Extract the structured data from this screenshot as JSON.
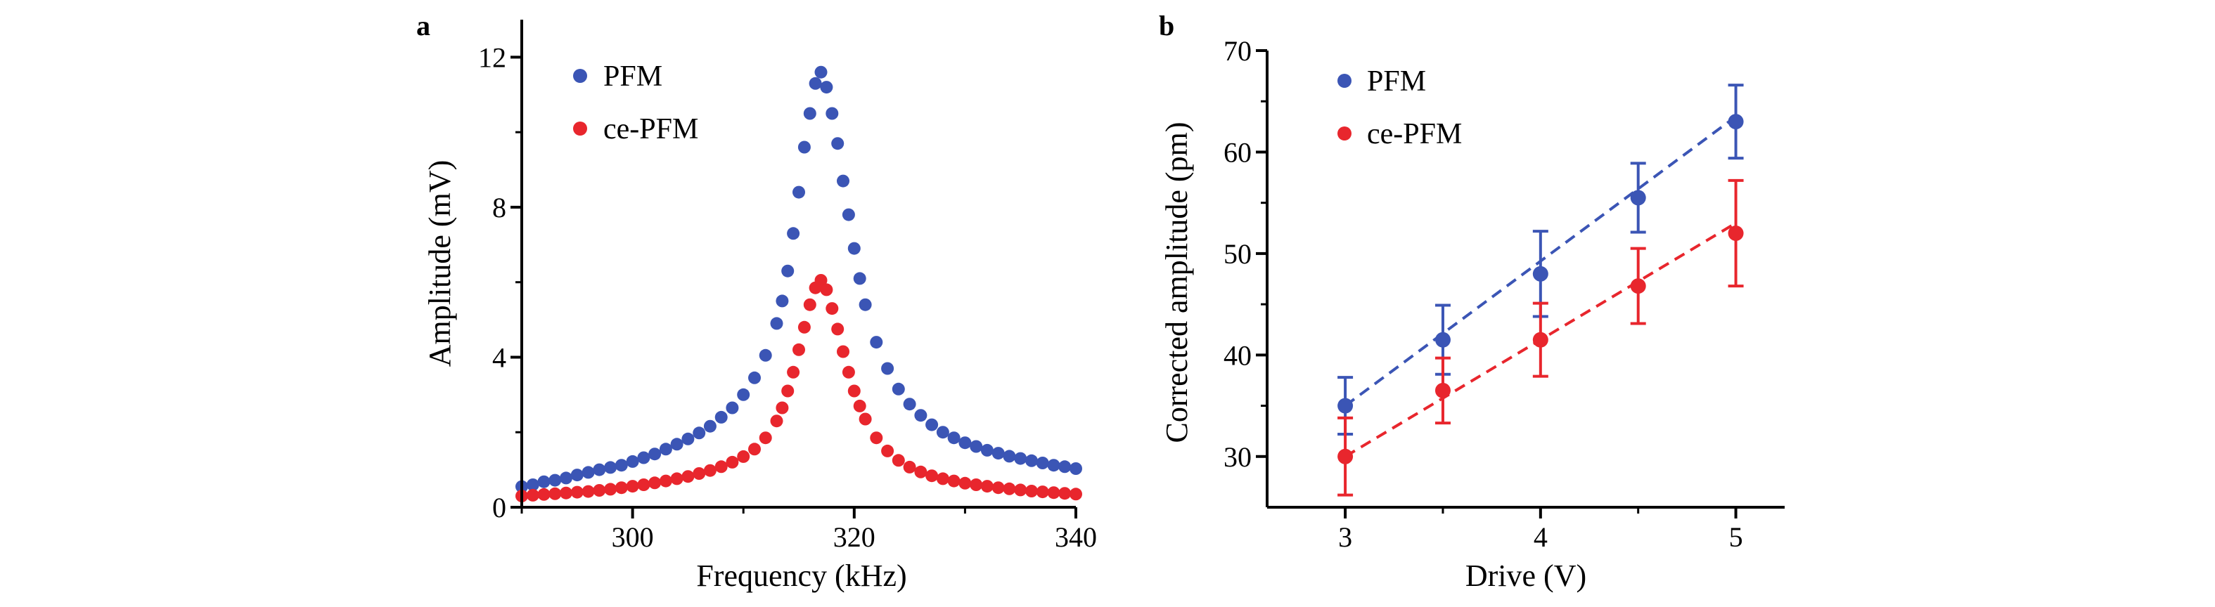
{
  "colors": {
    "pfm": "#3B55B5",
    "ce_pfm": "#E8262D",
    "axis": "#000000"
  },
  "chart_data": [
    {
      "panel": "a",
      "type": "scatter",
      "xlabel": "Frequency (kHz)",
      "ylabel": "Amplitude (mV)",
      "xlim": [
        290,
        340
      ],
      "ylim": [
        0,
        13
      ],
      "xticks": [
        300,
        320,
        340
      ],
      "yticks": [
        0,
        4,
        8,
        12
      ],
      "legend_position": "top-left",
      "series": [
        {
          "name": "PFM",
          "color_key": "pfm",
          "points": [
            [
              290.0,
              0.55
            ],
            [
              291.0,
              0.6
            ],
            [
              292.0,
              0.68
            ],
            [
              293.0,
              0.72
            ],
            [
              294.0,
              0.78
            ],
            [
              295.0,
              0.86
            ],
            [
              296.0,
              0.93
            ],
            [
              297.0,
              1.0
            ],
            [
              298.0,
              1.06
            ],
            [
              299.0,
              1.12
            ],
            [
              300.0,
              1.22
            ],
            [
              301.0,
              1.32
            ],
            [
              302.0,
              1.42
            ],
            [
              303.0,
              1.55
            ],
            [
              304.0,
              1.68
            ],
            [
              305.0,
              1.82
            ],
            [
              306.0,
              1.98
            ],
            [
              307.0,
              2.16
            ],
            [
              308.0,
              2.4
            ],
            [
              309.0,
              2.65
            ],
            [
              310.0,
              3.0
            ],
            [
              311.0,
              3.45
            ],
            [
              312.0,
              4.05
            ],
            [
              313.0,
              4.9
            ],
            [
              313.5,
              5.5
            ],
            [
              314.0,
              6.3
            ],
            [
              314.5,
              7.3
            ],
            [
              315.0,
              8.4
            ],
            [
              315.5,
              9.6
            ],
            [
              316.0,
              10.5
            ],
            [
              316.5,
              11.3
            ],
            [
              317.0,
              11.6
            ],
            [
              317.5,
              11.2
            ],
            [
              318.0,
              10.5
            ],
            [
              318.5,
              9.7
            ],
            [
              319.0,
              8.7
            ],
            [
              319.5,
              7.8
            ],
            [
              320.0,
              6.9
            ],
            [
              320.5,
              6.1
            ],
            [
              321.0,
              5.4
            ],
            [
              322.0,
              4.4
            ],
            [
              323.0,
              3.7
            ],
            [
              324.0,
              3.15
            ],
            [
              325.0,
              2.75
            ],
            [
              326.0,
              2.45
            ],
            [
              327.0,
              2.2
            ],
            [
              328.0,
              2.0
            ],
            [
              329.0,
              1.85
            ],
            [
              330.0,
              1.72
            ],
            [
              331.0,
              1.62
            ],
            [
              332.0,
              1.52
            ],
            [
              333.0,
              1.44
            ],
            [
              334.0,
              1.36
            ],
            [
              335.0,
              1.3
            ],
            [
              336.0,
              1.24
            ],
            [
              337.0,
              1.18
            ],
            [
              338.0,
              1.12
            ],
            [
              339.0,
              1.08
            ],
            [
              340.0,
              1.03
            ]
          ]
        },
        {
          "name": "ce-PFM",
          "color_key": "ce_pfm",
          "points": [
            [
              290.0,
              0.3
            ],
            [
              291.0,
              0.32
            ],
            [
              292.0,
              0.34
            ],
            [
              293.0,
              0.36
            ],
            [
              294.0,
              0.38
            ],
            [
              295.0,
              0.4
            ],
            [
              296.0,
              0.42
            ],
            [
              297.0,
              0.45
            ],
            [
              298.0,
              0.48
            ],
            [
              299.0,
              0.52
            ],
            [
              300.0,
              0.56
            ],
            [
              301.0,
              0.6
            ],
            [
              302.0,
              0.65
            ],
            [
              303.0,
              0.7
            ],
            [
              304.0,
              0.76
            ],
            [
              305.0,
              0.82
            ],
            [
              306.0,
              0.9
            ],
            [
              307.0,
              0.98
            ],
            [
              308.0,
              1.08
            ],
            [
              309.0,
              1.2
            ],
            [
              310.0,
              1.35
            ],
            [
              311.0,
              1.55
            ],
            [
              312.0,
              1.85
            ],
            [
              313.0,
              2.3
            ],
            [
              313.5,
              2.65
            ],
            [
              314.0,
              3.1
            ],
            [
              314.5,
              3.6
            ],
            [
              315.0,
              4.2
            ],
            [
              315.5,
              4.8
            ],
            [
              316.0,
              5.4
            ],
            [
              316.5,
              5.85
            ],
            [
              317.0,
              6.05
            ],
            [
              317.5,
              5.8
            ],
            [
              318.0,
              5.3
            ],
            [
              318.5,
              4.75
            ],
            [
              319.0,
              4.15
            ],
            [
              319.5,
              3.6
            ],
            [
              320.0,
              3.1
            ],
            [
              320.5,
              2.7
            ],
            [
              321.0,
              2.35
            ],
            [
              322.0,
              1.85
            ],
            [
              323.0,
              1.5
            ],
            [
              324.0,
              1.25
            ],
            [
              325.0,
              1.07
            ],
            [
              326.0,
              0.94
            ],
            [
              327.0,
              0.84
            ],
            [
              328.0,
              0.76
            ],
            [
              329.0,
              0.7
            ],
            [
              330.0,
              0.64
            ],
            [
              331.0,
              0.6
            ],
            [
              332.0,
              0.56
            ],
            [
              333.0,
              0.52
            ],
            [
              334.0,
              0.49
            ],
            [
              335.0,
              0.46
            ],
            [
              336.0,
              0.43
            ],
            [
              337.0,
              0.41
            ],
            [
              338.0,
              0.39
            ],
            [
              339.0,
              0.37
            ],
            [
              340.0,
              0.35
            ]
          ]
        }
      ]
    },
    {
      "panel": "b",
      "type": "scatter",
      "xlabel": "Drive (V)",
      "ylabel": "Corrected amplitude (pm)",
      "xlim": [
        2.6,
        5.25
      ],
      "ylim": [
        25,
        70
      ],
      "xticks": [
        3,
        4,
        5
      ],
      "yticks": [
        30,
        40,
        50,
        60,
        70
      ],
      "legend_position": "top-left",
      "series": [
        {
          "name": "PFM",
          "color_key": "pfm",
          "x": [
            3,
            3.5,
            4,
            4.5,
            5
          ],
          "y": [
            35,
            41.5,
            48,
            55.5,
            63
          ],
          "err": [
            2.8,
            3.4,
            4.2,
            3.4,
            3.6
          ],
          "fit": [
            [
              3,
              35
            ],
            [
              5,
              63.5
            ]
          ]
        },
        {
          "name": "ce-PFM",
          "color_key": "ce_pfm",
          "x": [
            3,
            3.5,
            4,
            4.5,
            5
          ],
          "y": [
            30,
            36.5,
            41.5,
            46.8,
            52
          ],
          "err": [
            3.8,
            3.2,
            3.6,
            3.7,
            5.2
          ],
          "fit": [
            [
              3,
              30
            ],
            [
              5,
              53
            ]
          ]
        }
      ]
    }
  ]
}
